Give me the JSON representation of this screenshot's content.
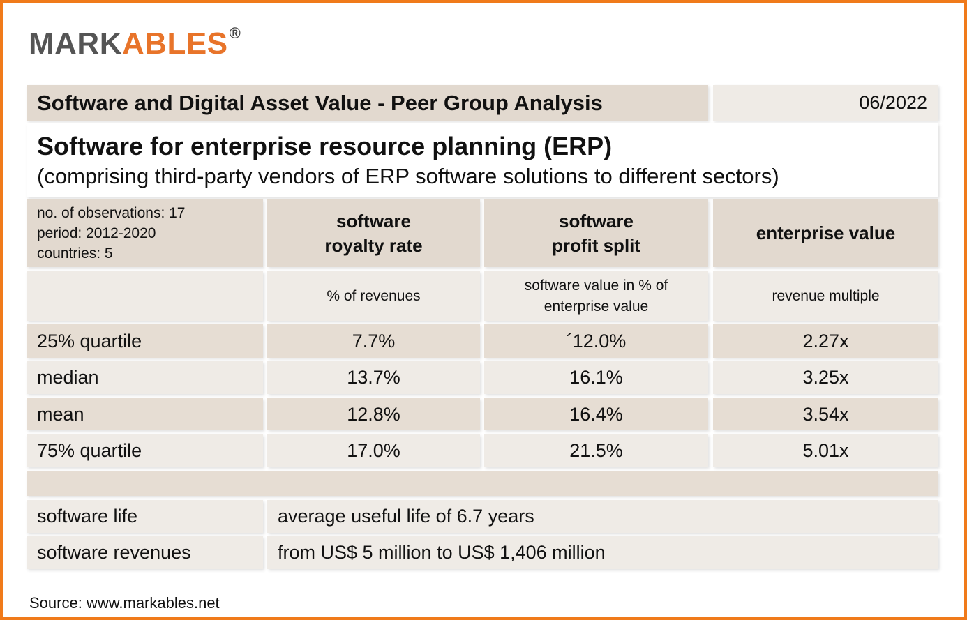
{
  "logo": {
    "dark": "MARK",
    "orange": "ABLES",
    "registered": "®"
  },
  "header": {
    "title": "Software and Digital Asset Value - Peer Group Analysis",
    "date": "06/2022"
  },
  "subtitle": {
    "title": "Software for enterprise resource planning (ERP)",
    "description": "(comprising third-party vendors of ERP software solutions to different sectors)"
  },
  "table": {
    "meta": [
      "no. of observations: 17",
      "period: 2012-2020",
      "countries: 5"
    ],
    "columns": [
      "software royalty rate",
      "software profit split",
      "enterprise value"
    ],
    "units": [
      "% of revenues",
      "software value in % of enterprise value",
      "revenue multiple"
    ],
    "rows": [
      [
        "25% quartile",
        "7.7%",
        "´12.0%",
        "2.27x"
      ],
      [
        "median",
        "13.7%",
        "16.1%",
        "3.25x"
      ],
      [
        "mean",
        "12.8%",
        "16.4%",
        "3.54x"
      ],
      [
        "75% quartile",
        "17.0%",
        "21.5%",
        "5.01x"
      ]
    ]
  },
  "notes": [
    [
      "software life",
      "average useful life of 6.7 years"
    ],
    [
      "software revenues",
      "from US$ 5 million to US$ 1,406 million"
    ]
  ],
  "source": "Source: www.markables.net"
}
